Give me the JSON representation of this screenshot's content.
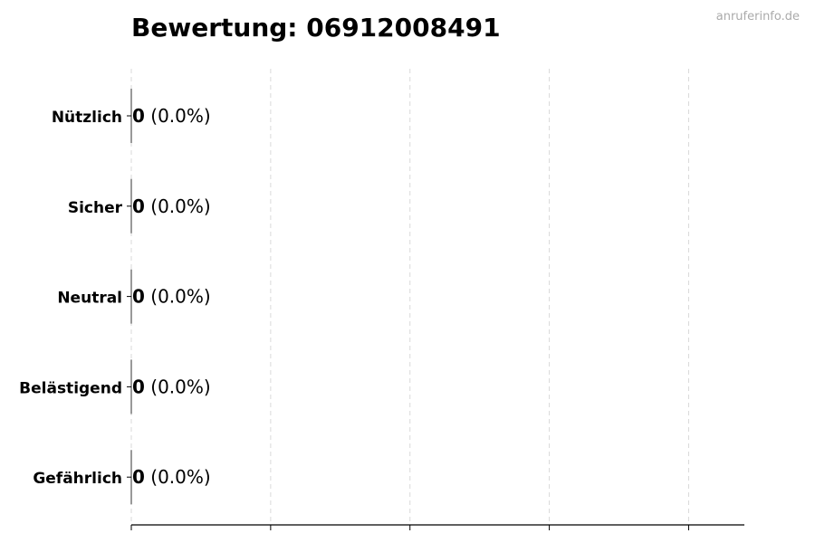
{
  "chart_data": {
    "type": "bar",
    "orientation": "horizontal",
    "title": "Bewertung: 06912008491",
    "watermark": "anruferinfo.de",
    "categories": [
      "Nützlich",
      "Sicher",
      "Neutral",
      "Belästigend",
      "Gefährlich"
    ],
    "values": [
      0,
      0,
      0,
      0,
      0
    ],
    "labels": [
      {
        "count": "0",
        "percent": "(0.0%)"
      },
      {
        "count": "0",
        "percent": "(0.0%)"
      },
      {
        "count": "0",
        "percent": "(0.0%)"
      },
      {
        "count": "0",
        "percent": "(0.0%)"
      },
      {
        "count": "0",
        "percent": "(0.0%)"
      }
    ],
    "xlim": [
      0,
      4.4
    ],
    "xticks": [
      0,
      1,
      2,
      3,
      4
    ],
    "xtick_labels_shown": false,
    "grid": "x dashed",
    "colors": {
      "grid": "#d9d9d9",
      "axis": "#000000",
      "bar_edge": "#333333"
    }
  }
}
